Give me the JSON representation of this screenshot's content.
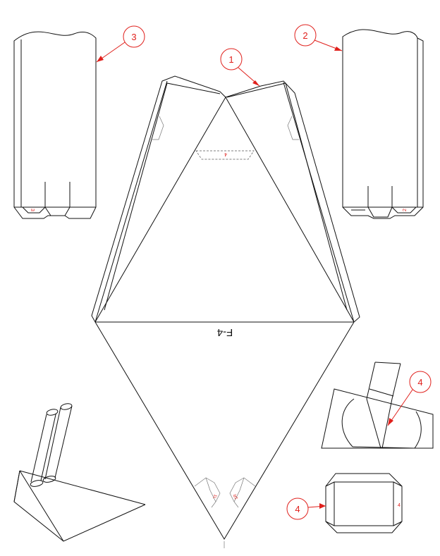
{
  "drawing": {
    "center_label": "F-4",
    "tab_mark": "4",
    "piece_marks": {
      "left_piece": "3",
      "right_piece": "2",
      "diamond_left": "1L",
      "diamond_right": "1R",
      "end_view": "4",
      "bottom_tick": "1"
    },
    "callouts": [
      {
        "number": "1"
      },
      {
        "number": "2"
      },
      {
        "number": "3"
      },
      {
        "number": "4"
      },
      {
        "number": "4"
      }
    ],
    "colors": {
      "line": "#111111",
      "callout": "#e0201c",
      "background": "#ffffff"
    }
  }
}
